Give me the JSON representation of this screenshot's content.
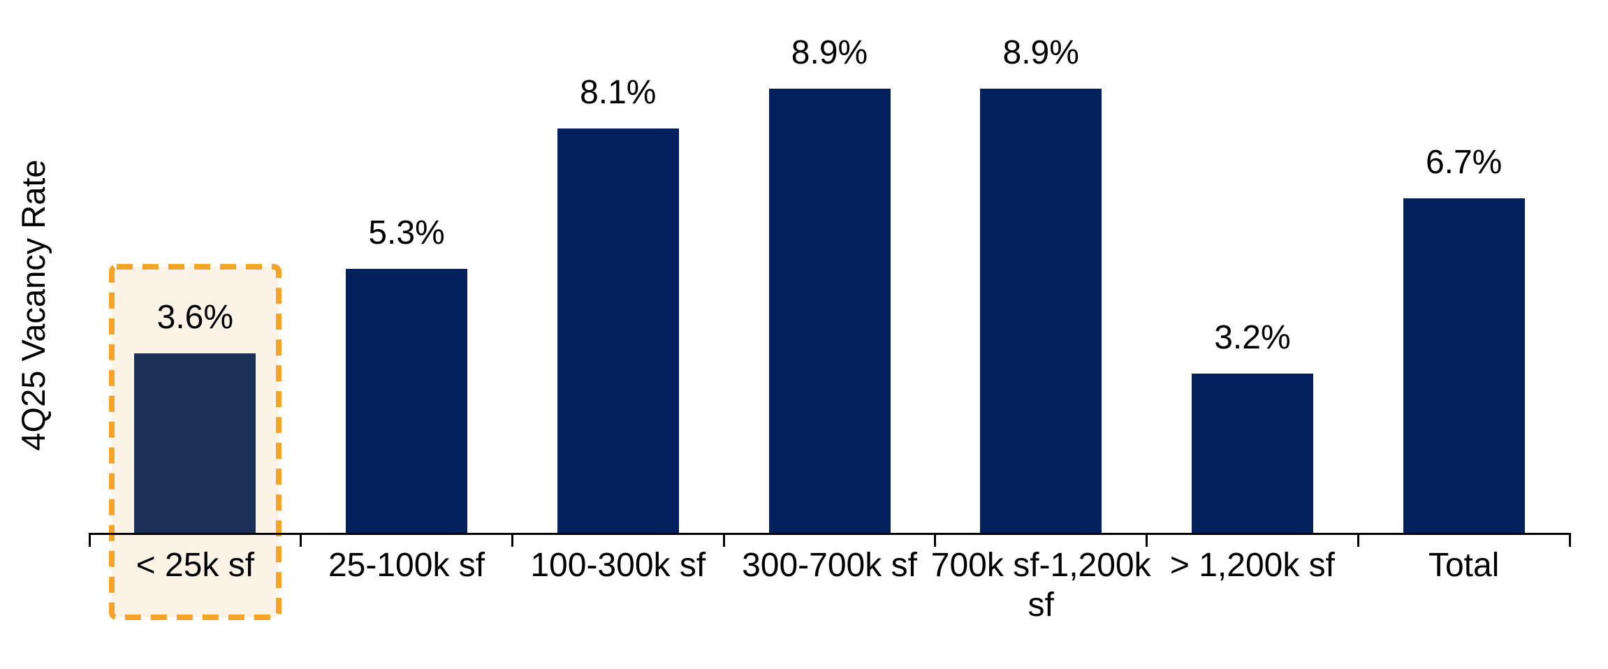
{
  "chart_data": {
    "type": "bar",
    "title": "",
    "xlabel": "",
    "ylabel": "4Q25 Vacancy Rate",
    "categories": [
      "< 25k sf",
      "25-100k sf",
      "100-300k sf",
      "300-700k sf",
      "700k sf-1,200k\nsf",
      "> 1,200k sf",
      "Total"
    ],
    "values": [
      3.6,
      5.3,
      8.1,
      8.9,
      8.9,
      3.2,
      6.7
    ],
    "value_labels": [
      "3.6%",
      "5.3%",
      "8.1%",
      "8.9%",
      "8.9%",
      "3.2%",
      "6.7%"
    ],
    "ylim": [
      0,
      9
    ],
    "grid": false,
    "legend": false,
    "highlighted_index": 0,
    "highlighted_category": "< 25k sf",
    "colors": {
      "bar": "#02215C",
      "highlighted_bar": "#1D3055",
      "highlight_border": "#F5A427",
      "highlight_fill": "#FBF3E6",
      "axis": "#000000",
      "text": "#000000",
      "background": "#FFFFFF"
    }
  }
}
